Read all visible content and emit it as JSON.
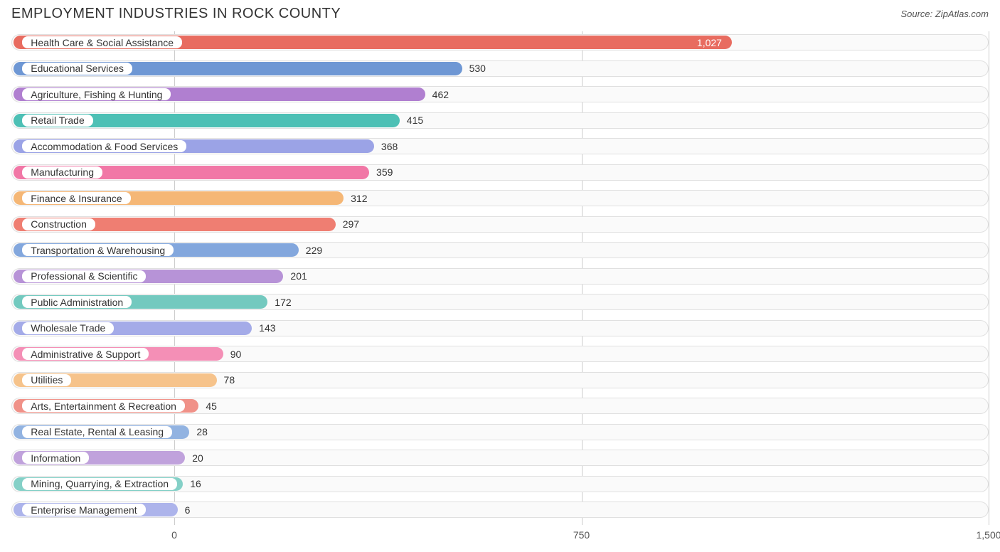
{
  "title": "EMPLOYMENT INDUSTRIES IN ROCK COUNTY",
  "source_label": "Source: ",
  "source_name": "ZipAtlas.com",
  "chart": {
    "type": "bar-horizontal",
    "xlim": [
      -300,
      1500
    ],
    "xticks": [
      {
        "value": 0,
        "label": "0"
      },
      {
        "value": 750,
        "label": "750"
      },
      {
        "value": 1500,
        "label": "1,500"
      }
    ],
    "bar_start_x": -300,
    "label_start_x": -280,
    "grid_color": "#cccccc",
    "track_bg": "#fafafa",
    "track_border": "#e0e0e0",
    "bg": "#ffffff",
    "title_color": "#333333",
    "title_fontsize": 20,
    "label_fontsize": 14,
    "value_fontsize": 14,
    "rows": [
      {
        "label": "Health Care & Social Assistance",
        "value": 1027,
        "value_text": "1,027",
        "color": "#e86c60",
        "value_inside": true
      },
      {
        "label": "Educational Services",
        "value": 530,
        "value_text": "530",
        "color": "#6e97d4",
        "value_inside": false
      },
      {
        "label": "Agriculture, Fishing & Hunting",
        "value": 462,
        "value_text": "462",
        "color": "#b07fd0",
        "value_inside": false
      },
      {
        "label": "Retail Trade",
        "value": 415,
        "value_text": "415",
        "color": "#4dc0b5",
        "value_inside": false
      },
      {
        "label": "Accommodation & Food Services",
        "value": 368,
        "value_text": "368",
        "color": "#9ba3e6",
        "value_inside": false
      },
      {
        "label": "Manufacturing",
        "value": 359,
        "value_text": "359",
        "color": "#f177a6",
        "value_inside": false
      },
      {
        "label": "Finance & Insurance",
        "value": 312,
        "value_text": "312",
        "color": "#f5b776",
        "value_inside": false
      },
      {
        "label": "Construction",
        "value": 297,
        "value_text": "297",
        "color": "#ef7e72",
        "value_inside": false
      },
      {
        "label": "Transportation & Warehousing",
        "value": 229,
        "value_text": "229",
        "color": "#83a7dd",
        "value_inside": false
      },
      {
        "label": "Professional & Scientific",
        "value": 201,
        "value_text": "201",
        "color": "#b793d7",
        "value_inside": false
      },
      {
        "label": "Public Administration",
        "value": 172,
        "value_text": "172",
        "color": "#73c9bf",
        "value_inside": false
      },
      {
        "label": "Wholesale Trade",
        "value": 143,
        "value_text": "143",
        "color": "#a4abe8",
        "value_inside": false
      },
      {
        "label": "Administrative & Support",
        "value": 90,
        "value_text": "90",
        "color": "#f48fb6",
        "value_inside": false
      },
      {
        "label": "Utilities",
        "value": 78,
        "value_text": "78",
        "color": "#f6c38b",
        "value_inside": false
      },
      {
        "label": "Arts, Entertainment & Recreation",
        "value": 45,
        "value_text": "45",
        "color": "#f09188",
        "value_inside": false
      },
      {
        "label": "Real Estate, Rental & Leasing",
        "value": 28,
        "value_text": "28",
        "color": "#92b3e1",
        "value_inside": false
      },
      {
        "label": "Information",
        "value": 20,
        "value_text": "20",
        "color": "#c0a2dc",
        "value_inside": false
      },
      {
        "label": "Mining, Quarrying, & Extraction",
        "value": 16,
        "value_text": "16",
        "color": "#84d0c7",
        "value_inside": false
      },
      {
        "label": "Enterprise Management",
        "value": 6,
        "value_text": "6",
        "color": "#adb4eb",
        "value_inside": false
      }
    ]
  }
}
